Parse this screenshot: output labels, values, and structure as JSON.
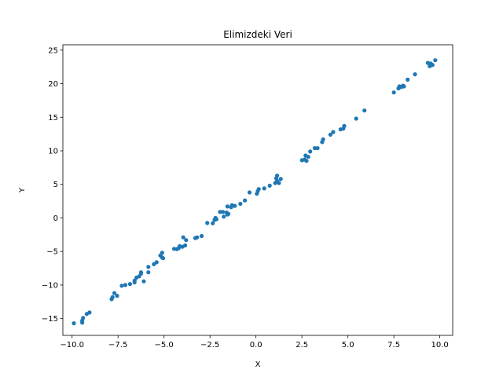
{
  "chart_data": {
    "type": "scatter",
    "title": "Elimizdeki Veri",
    "xlabel": "X",
    "ylabel": "Y",
    "xlim": [
      -10.5,
      10.7
    ],
    "ylim": [
      -17.5,
      25.8
    ],
    "xticks": [
      -10.0,
      -7.5,
      -5.0,
      -2.5,
      0.0,
      2.5,
      5.0,
      7.5,
      10.0
    ],
    "xtick_labels": [
      "−10.0",
      "−7.5",
      "−5.0",
      "−2.5",
      "0.0",
      "2.5",
      "5.0",
      "7.5",
      "10.0"
    ],
    "yticks": [
      -15,
      -10,
      -5,
      0,
      5,
      10,
      15,
      20,
      25
    ],
    "ytick_labels": [
      "−15",
      "−10",
      "−5",
      "0",
      "5",
      "10",
      "15",
      "20",
      "25"
    ],
    "grid": false,
    "marker_color": "#1f77b4",
    "points": [
      [
        -9.9,
        -15.7
      ],
      [
        -9.45,
        -15.6
      ],
      [
        -9.45,
        -15.3
      ],
      [
        -9.4,
        -14.9
      ],
      [
        -9.2,
        -14.3
      ],
      [
        -9.05,
        -14.1
      ],
      [
        -7.85,
        -12.1
      ],
      [
        -7.8,
        -11.8
      ],
      [
        -7.7,
        -11.2
      ],
      [
        -7.55,
        -11.6
      ],
      [
        -7.3,
        -10.1
      ],
      [
        -7.1,
        -10.0
      ],
      [
        -6.85,
        -9.85
      ],
      [
        -6.6,
        -9.6
      ],
      [
        -6.6,
        -9.35
      ],
      [
        -6.5,
        -8.9
      ],
      [
        -6.35,
        -8.7
      ],
      [
        -6.25,
        -8.3
      ],
      [
        -6.25,
        -8.1
      ],
      [
        -6.1,
        -9.45
      ],
      [
        -5.85,
        -8.1
      ],
      [
        -5.85,
        -7.3
      ],
      [
        -5.55,
        -6.9
      ],
      [
        -5.4,
        -6.6
      ],
      [
        -5.2,
        -5.6
      ],
      [
        -5.1,
        -5.2
      ],
      [
        -5.1,
        -5.9
      ],
      [
        -5.05,
        -6.0
      ],
      [
        -4.45,
        -4.6
      ],
      [
        -4.3,
        -4.65
      ],
      [
        -4.2,
        -4.5
      ],
      [
        -4.15,
        -4.2
      ],
      [
        -4.0,
        -4.3
      ],
      [
        -3.95,
        -2.9
      ],
      [
        -3.85,
        -4.1
      ],
      [
        -3.8,
        -3.3
      ],
      [
        -3.3,
        -3.0
      ],
      [
        -3.2,
        -2.9
      ],
      [
        -2.95,
        -2.7
      ],
      [
        -2.65,
        -0.75
      ],
      [
        -2.35,
        -0.8
      ],
      [
        -2.25,
        -0.3
      ],
      [
        -2.2,
        0.0
      ],
      [
        -2.15,
        -0.2
      ],
      [
        -1.95,
        0.9
      ],
      [
        -1.8,
        0.9
      ],
      [
        -1.75,
        0.2
      ],
      [
        -1.6,
        0.8
      ],
      [
        -1.55,
        0.5
      ],
      [
        -1.55,
        1.7
      ],
      [
        -1.5,
        0.6
      ],
      [
        -1.3,
        1.9
      ],
      [
        -1.35,
        1.6
      ],
      [
        -1.15,
        1.8
      ],
      [
        -0.85,
        2.1
      ],
      [
        -0.6,
        2.6
      ],
      [
        -0.35,
        3.8
      ],
      [
        0.05,
        3.6
      ],
      [
        0.1,
        4.0
      ],
      [
        0.15,
        4.3
      ],
      [
        0.45,
        4.4
      ],
      [
        0.75,
        4.8
      ],
      [
        1.05,
        5.2
      ],
      [
        1.15,
        5.5
      ],
      [
        1.1,
        5.9
      ],
      [
        1.15,
        6.3
      ],
      [
        1.25,
        5.2
      ],
      [
        1.35,
        5.8
      ],
      [
        2.5,
        8.6
      ],
      [
        2.65,
        8.7
      ],
      [
        2.7,
        9.3
      ],
      [
        2.75,
        8.5
      ],
      [
        2.85,
        9.1
      ],
      [
        2.95,
        9.9
      ],
      [
        3.2,
        10.4
      ],
      [
        3.35,
        10.4
      ],
      [
        3.6,
        11.3
      ],
      [
        3.65,
        11.7
      ],
      [
        4.05,
        12.4
      ],
      [
        4.2,
        12.8
      ],
      [
        4.6,
        13.2
      ],
      [
        4.75,
        13.3
      ],
      [
        4.8,
        13.7
      ],
      [
        5.45,
        14.8
      ],
      [
        5.9,
        16.0
      ],
      [
        7.5,
        18.7
      ],
      [
        7.75,
        19.3
      ],
      [
        7.8,
        19.6
      ],
      [
        7.9,
        19.5
      ],
      [
        8.0,
        19.7
      ],
      [
        8.05,
        19.6
      ],
      [
        8.25,
        20.6
      ],
      [
        8.65,
        21.4
      ],
      [
        9.35,
        23.1
      ],
      [
        9.45,
        22.6
      ],
      [
        9.5,
        23.0
      ],
      [
        9.6,
        22.8
      ],
      [
        9.75,
        23.5
      ]
    ]
  }
}
